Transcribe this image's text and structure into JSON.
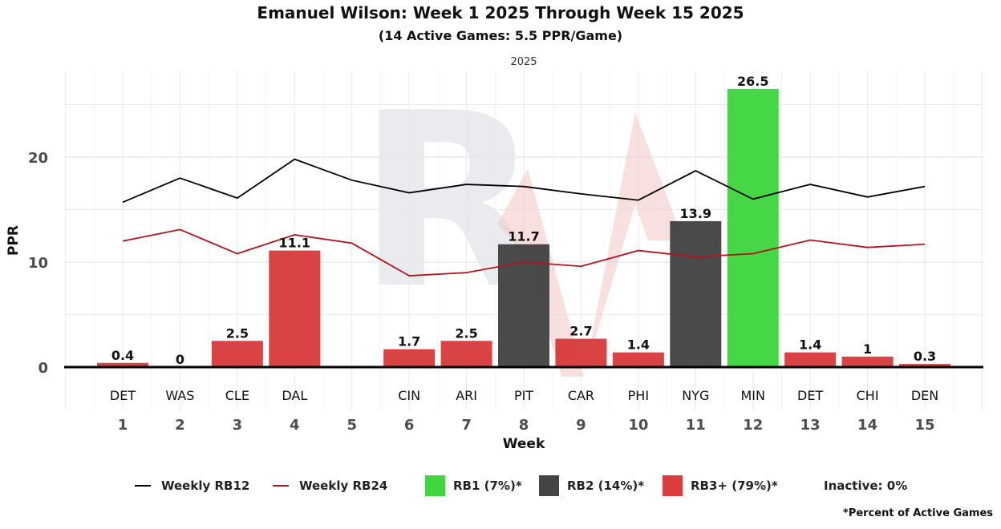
{
  "chart_data": {
    "type": "bar",
    "title": "Emanuel Wilson: Week 1 2025 Through Week 15 2025",
    "subtitle": "(14 Active Games: 5.5 PPR/Game)",
    "facet_label": "2025",
    "xlabel": "Week",
    "ylabel": "PPR",
    "ylim": [
      0,
      27.5
    ],
    "yticks": [
      0,
      10,
      20
    ],
    "grid": true,
    "weeks": [
      1,
      2,
      3,
      4,
      5,
      6,
      7,
      8,
      9,
      10,
      11,
      12,
      13,
      14,
      15
    ],
    "week_labels": [
      "1",
      "2",
      "3",
      "4",
      "5",
      "6",
      "7",
      "8",
      "9",
      "10",
      "11",
      "12",
      "13",
      "14",
      "15"
    ],
    "opponents": [
      "DET",
      "WAS",
      "CLE",
      "DAL",
      "",
      "CIN",
      "ARI",
      "PIT",
      "CAR",
      "PHI",
      "NYG",
      "MIN",
      "DET",
      "CHI",
      "DEN"
    ],
    "bars": [
      {
        "week": 1,
        "value": 0.4,
        "label": "0.4",
        "tier": "RB3+"
      },
      {
        "week": 2,
        "value": 0,
        "label": "0",
        "tier": "RB3+"
      },
      {
        "week": 3,
        "value": 2.5,
        "label": "2.5",
        "tier": "RB3+"
      },
      {
        "week": 4,
        "value": 11.1,
        "label": "11.1",
        "tier": "RB3+"
      },
      {
        "week": 6,
        "value": 1.7,
        "label": "1.7",
        "tier": "RB3+"
      },
      {
        "week": 7,
        "value": 2.5,
        "label": "2.5",
        "tier": "RB3+"
      },
      {
        "week": 8,
        "value": 11.7,
        "label": "11.7",
        "tier": "RB2"
      },
      {
        "week": 9,
        "value": 2.7,
        "label": "2.7",
        "tier": "RB3+"
      },
      {
        "week": 10,
        "value": 1.4,
        "label": "1.4",
        "tier": "RB3+"
      },
      {
        "week": 11,
        "value": 13.9,
        "label": "13.9",
        "tier": "RB2"
      },
      {
        "week": 12,
        "value": 26.5,
        "label": "26.5",
        "tier": "RB1"
      },
      {
        "week": 13,
        "value": 1.4,
        "label": "1.4",
        "tier": "RB3+"
      },
      {
        "week": 14,
        "value": 1,
        "label": "1",
        "tier": "RB3+"
      },
      {
        "week": 15,
        "value": 0.3,
        "label": "0.3",
        "tier": "RB3+"
      }
    ],
    "series": [
      {
        "name": "Weekly RB12",
        "color": "#000000",
        "values": [
          15.7,
          18.0,
          16.1,
          19.8,
          17.8,
          16.6,
          17.4,
          17.2,
          16.5,
          15.9,
          18.7,
          16.0,
          17.4,
          16.2,
          17.2
        ]
      },
      {
        "name": "Weekly RB24",
        "color": "#b5121b",
        "values": [
          12.0,
          13.1,
          10.8,
          12.6,
          11.8,
          8.7,
          9.0,
          10.0,
          9.6,
          11.1,
          10.5,
          10.8,
          12.1,
          11.4,
          11.7
        ]
      }
    ],
    "tier_colors": {
      "RB1": "#3fd63f",
      "RB2": "#444444",
      "RB3+": "#d93d3d"
    },
    "legend": {
      "position": "bottom",
      "items": [
        {
          "key": "line",
          "label": "Weekly RB12",
          "color": "#000000"
        },
        {
          "key": "line",
          "label": "Weekly RB24",
          "color": "#b5121b"
        },
        {
          "key": "box",
          "label": "RB1 (7%)*",
          "color": "#3fd63f"
        },
        {
          "key": "box",
          "label": "RB2 (14%)*",
          "color": "#444444"
        },
        {
          "key": "box",
          "label": "RB3+ (79%)*",
          "color": "#d93d3d"
        },
        {
          "key": "text",
          "label": "Inactive: 0%"
        }
      ]
    },
    "footnote": "*Percent of Active Games"
  }
}
